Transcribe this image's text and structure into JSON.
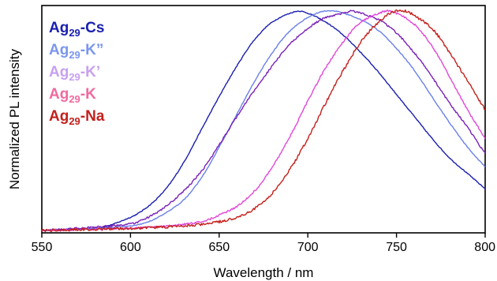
{
  "chart_data": {
    "type": "line",
    "title": "",
    "xlabel": "Wavelength / nm",
    "ylabel": "Normalized PL intensity",
    "xlim": [
      550,
      800
    ],
    "ylim": [
      0,
      1.02
    ],
    "x_ticks": [
      550,
      600,
      650,
      700,
      750,
      800
    ],
    "x_tick_labels": [
      "550",
      "600",
      "650",
      "700",
      "750",
      "800"
    ],
    "y_ticks_labeled": false,
    "grid": false,
    "legend_position": "top-left",
    "series": [
      {
        "name": "Ag29-Cs",
        "label_main": "Ag",
        "label_sub": "29",
        "label_suffix": "-Cs",
        "color": "#1a1fb0",
        "noise": 0.002,
        "points": [
          [
            550,
            0.0
          ],
          [
            580,
            0.01
          ],
          [
            600,
            0.06
          ],
          [
            610,
            0.11
          ],
          [
            620,
            0.19
          ],
          [
            630,
            0.31
          ],
          [
            640,
            0.46
          ],
          [
            650,
            0.61
          ],
          [
            660,
            0.75
          ],
          [
            670,
            0.87
          ],
          [
            680,
            0.95
          ],
          [
            690,
            0.99
          ],
          [
            695,
            1.0
          ],
          [
            700,
            0.99
          ],
          [
            710,
            0.95
          ],
          [
            720,
            0.89
          ],
          [
            730,
            0.81
          ],
          [
            740,
            0.72
          ],
          [
            750,
            0.62
          ],
          [
            760,
            0.52
          ],
          [
            770,
            0.42
          ],
          [
            780,
            0.33
          ],
          [
            790,
            0.26
          ],
          [
            800,
            0.19
          ]
        ]
      },
      {
        "name": "Ag29-K''",
        "label_main": "Ag",
        "label_sub": "29",
        "label_suffix": "-K”",
        "color": "#6a80e8",
        "noise": 0.002,
        "points": [
          [
            550,
            0.0
          ],
          [
            600,
            0.02
          ],
          [
            610,
            0.04
          ],
          [
            620,
            0.08
          ],
          [
            630,
            0.14
          ],
          [
            640,
            0.24
          ],
          [
            650,
            0.38
          ],
          [
            660,
            0.53
          ],
          [
            670,
            0.68
          ],
          [
            680,
            0.81
          ],
          [
            690,
            0.91
          ],
          [
            700,
            0.97
          ],
          [
            710,
            1.0
          ],
          [
            715,
            1.0
          ],
          [
            720,
            0.99
          ],
          [
            730,
            0.96
          ],
          [
            740,
            0.91
          ],
          [
            750,
            0.83
          ],
          [
            760,
            0.73
          ],
          [
            770,
            0.61
          ],
          [
            780,
            0.49
          ],
          [
            790,
            0.38
          ],
          [
            800,
            0.29
          ]
        ]
      },
      {
        "name": "Ag29-K'",
        "label_main": "Ag",
        "label_sub": "29",
        "label_suffix": "-K’",
        "color": "#7a22b8",
        "noise": 0.004,
        "points": [
          [
            550,
            0.0
          ],
          [
            600,
            0.03
          ],
          [
            610,
            0.06
          ],
          [
            620,
            0.11
          ],
          [
            630,
            0.18
          ],
          [
            640,
            0.27
          ],
          [
            650,
            0.39
          ],
          [
            660,
            0.52
          ],
          [
            670,
            0.64
          ],
          [
            680,
            0.75
          ],
          [
            690,
            0.85
          ],
          [
            700,
            0.92
          ],
          [
            710,
            0.97
          ],
          [
            720,
            0.99
          ],
          [
            725,
            1.0
          ],
          [
            730,
            0.99
          ],
          [
            740,
            0.96
          ],
          [
            750,
            0.9
          ],
          [
            760,
            0.81
          ],
          [
            770,
            0.7
          ],
          [
            780,
            0.58
          ],
          [
            790,
            0.47
          ],
          [
            800,
            0.35
          ]
        ]
      },
      {
        "name": "Ag29-K",
        "label_main": "Ag",
        "label_sub": "29",
        "label_suffix": "-K",
        "color": "#e048d8",
        "noise": 0.004,
        "points": [
          [
            550,
            0.0
          ],
          [
            600,
            0.01
          ],
          [
            620,
            0.02
          ],
          [
            640,
            0.04
          ],
          [
            650,
            0.07
          ],
          [
            660,
            0.11
          ],
          [
            670,
            0.18
          ],
          [
            680,
            0.29
          ],
          [
            690,
            0.43
          ],
          [
            700,
            0.59
          ],
          [
            710,
            0.74
          ],
          [
            720,
            0.86
          ],
          [
            730,
            0.95
          ],
          [
            740,
            0.99
          ],
          [
            745,
            1.0
          ],
          [
            750,
            0.99
          ],
          [
            760,
            0.94
          ],
          [
            770,
            0.84
          ],
          [
            780,
            0.7
          ],
          [
            790,
            0.55
          ],
          [
            800,
            0.42
          ]
        ]
      },
      {
        "name": "Ag29-Na",
        "label_main": "Ag",
        "label_sub": "29",
        "label_suffix": "-Na",
        "color": "#c4201c",
        "noise": 0.006,
        "points": [
          [
            550,
            0.0
          ],
          [
            600,
            0.01
          ],
          [
            630,
            0.02
          ],
          [
            650,
            0.04
          ],
          [
            660,
            0.06
          ],
          [
            670,
            0.1
          ],
          [
            680,
            0.17
          ],
          [
            690,
            0.28
          ],
          [
            700,
            0.42
          ],
          [
            710,
            0.58
          ],
          [
            720,
            0.73
          ],
          [
            730,
            0.86
          ],
          [
            740,
            0.95
          ],
          [
            750,
            1.0
          ],
          [
            755,
            1.0
          ],
          [
            760,
            0.98
          ],
          [
            770,
            0.92
          ],
          [
            780,
            0.81
          ],
          [
            790,
            0.68
          ],
          [
            800,
            0.55
          ]
        ]
      }
    ]
  },
  "legend_colors": {
    "Ag29-Cs": "#1a1fb0",
    "Ag29-K''": "#7a96ee",
    "Ag29-K'": "#c8a0f0",
    "Ag29-K": "#f06aa0",
    "Ag29-Na": "#c4201c"
  }
}
